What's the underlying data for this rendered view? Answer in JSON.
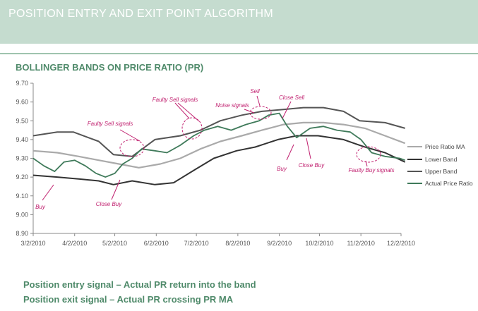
{
  "header": {
    "title": "POSITION ENTRY AND EXIT POINT ALGORITHM"
  },
  "colors": {
    "header_bg": "#c5dccf",
    "accent_green": "#4f8a6a",
    "annotation_magenta": "#c0206f",
    "upper_band": "#555555",
    "lower_band": "#333333",
    "ma": "#aaaaaa",
    "actual": "#3f7a5a"
  },
  "chart_data": {
    "type": "line",
    "title": "BOLLINGER BANDS ON PRICE RATIO (PR)",
    "xlabel": "",
    "ylabel": "",
    "ylim": [
      8.9,
      9.7
    ],
    "yticks": [
      "8.90",
      "9.00",
      "9.10",
      "9.20",
      "9.30",
      "9.40",
      "9.50",
      "9.60",
      "9.70"
    ],
    "xticks": [
      "3/2/2010",
      "4/2/2010",
      "5/2/2010",
      "6/2/2010",
      "7/2/2010",
      "8/2/2010",
      "9/2/2010",
      "10/2/2010",
      "11/2/2010",
      "12/2/2010"
    ],
    "x_range": [
      "3/2/2010",
      "12/2/2010"
    ],
    "legend_position": "right",
    "series": [
      {
        "name": "Price Ratio MA",
        "color": "#aaaaaa",
        "points": [
          [
            "3/2/2010",
            9.34
          ],
          [
            "3/20/2010",
            9.33
          ],
          [
            "4/5/2010",
            9.31
          ],
          [
            "4/20/2010",
            9.29
          ],
          [
            "5/5/2010",
            9.27
          ],
          [
            "5/20/2010",
            9.25
          ],
          [
            "6/5/2010",
            9.27
          ],
          [
            "6/20/2010",
            9.3
          ],
          [
            "7/5/2010",
            9.35
          ],
          [
            "7/20/2010",
            9.39
          ],
          [
            "8/5/2010",
            9.42
          ],
          [
            "8/20/2010",
            9.45
          ],
          [
            "9/5/2010",
            9.48
          ],
          [
            "9/20/2010",
            9.49
          ],
          [
            "10/5/2010",
            9.49
          ],
          [
            "10/20/2010",
            9.48
          ],
          [
            "11/5/2010",
            9.46
          ],
          [
            "11/20/2010",
            9.42
          ],
          [
            "12/5/2010",
            9.38
          ]
        ]
      },
      {
        "name": "Lower Band",
        "color": "#333333",
        "points": [
          [
            "3/2/2010",
            9.21
          ],
          [
            "3/20/2010",
            9.2
          ],
          [
            "4/5/2010",
            9.19
          ],
          [
            "4/20/2010",
            9.18
          ],
          [
            "5/1/2010",
            9.16
          ],
          [
            "5/15/2010",
            9.18
          ],
          [
            "6/1/2010",
            9.16
          ],
          [
            "6/15/2010",
            9.17
          ],
          [
            "7/1/2010",
            9.24
          ],
          [
            "7/15/2010",
            9.3
          ],
          [
            "8/1/2010",
            9.34
          ],
          [
            "8/15/2010",
            9.36
          ],
          [
            "9/1/2010",
            9.4
          ],
          [
            "9/15/2010",
            9.42
          ],
          [
            "10/1/2010",
            9.42
          ],
          [
            "10/20/2010",
            9.4
          ],
          [
            "11/5/2010",
            9.36
          ],
          [
            "11/20/2010",
            9.33
          ],
          [
            "12/5/2010",
            9.28
          ]
        ]
      },
      {
        "name": "Upper Band",
        "color": "#555555",
        "points": [
          [
            "3/2/2010",
            9.42
          ],
          [
            "3/20/2010",
            9.44
          ],
          [
            "4/1/2010",
            9.44
          ],
          [
            "4/20/2010",
            9.39
          ],
          [
            "5/1/2010",
            9.32
          ],
          [
            "5/15/2010",
            9.31
          ],
          [
            "6/1/2010",
            9.4
          ],
          [
            "6/20/2010",
            9.42
          ],
          [
            "7/5/2010",
            9.45
          ],
          [
            "7/20/2010",
            9.5
          ],
          [
            "8/5/2010",
            9.53
          ],
          [
            "8/20/2010",
            9.55
          ],
          [
            "9/5/2010",
            9.56
          ],
          [
            "9/20/2010",
            9.57
          ],
          [
            "10/5/2010",
            9.57
          ],
          [
            "10/20/2010",
            9.55
          ],
          [
            "11/1/2010",
            9.5
          ],
          [
            "11/20/2010",
            9.49
          ],
          [
            "12/5/2010",
            9.46
          ]
        ]
      },
      {
        "name": "Actual Price Ratio",
        "color": "#3f7a5a",
        "points": [
          [
            "3/2/2010",
            9.3
          ],
          [
            "3/10/2010",
            9.26
          ],
          [
            "3/18/2010",
            9.23
          ],
          [
            "3/25/2010",
            9.28
          ],
          [
            "4/2/2010",
            9.29
          ],
          [
            "4/10/2010",
            9.26
          ],
          [
            "4/18/2010",
            9.22
          ],
          [
            "4/25/2010",
            9.2
          ],
          [
            "5/2/2010",
            9.22
          ],
          [
            "5/8/2010",
            9.27
          ],
          [
            "5/15/2010",
            9.3
          ],
          [
            "5/22/2010",
            9.35
          ],
          [
            "6/1/2010",
            9.34
          ],
          [
            "6/10/2010",
            9.33
          ],
          [
            "6/20/2010",
            9.37
          ],
          [
            "6/30/2010",
            9.42
          ],
          [
            "7/8/2010",
            9.45
          ],
          [
            "7/18/2010",
            9.47
          ],
          [
            "7/28/2010",
            9.45
          ],
          [
            "8/8/2010",
            9.48
          ],
          [
            "8/18/2010",
            9.5
          ],
          [
            "8/25/2010",
            9.53
          ],
          [
            "9/2/2010",
            9.54
          ],
          [
            "9/8/2010",
            9.47
          ],
          [
            "9/15/2010",
            9.41
          ],
          [
            "9/25/2010",
            9.46
          ],
          [
            "10/5/2010",
            9.47
          ],
          [
            "10/15/2010",
            9.45
          ],
          [
            "10/25/2010",
            9.44
          ],
          [
            "11/2/2010",
            9.4
          ],
          [
            "11/10/2010",
            9.33
          ],
          [
            "11/20/2010",
            9.31
          ],
          [
            "12/1/2010",
            9.3
          ],
          [
            "12/5/2010",
            9.29
          ]
        ]
      }
    ],
    "annotations": [
      "Buy",
      "Close Buy",
      "Faulty Sell signals",
      "Faulty Sell signals",
      "Noise signals",
      "Sell",
      "Close Sell",
      "Buy",
      "Close Buy",
      "Faulty Buy signals"
    ]
  },
  "footnotes": [
    "Position entry signal – Actual PR return into the band",
    "Position exit signal – Actual PR crossing PR MA"
  ]
}
